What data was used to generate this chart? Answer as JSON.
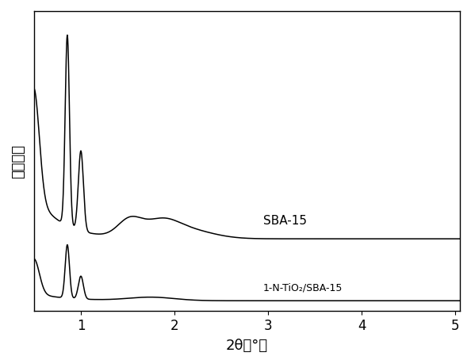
{
  "title": "",
  "xlabel": "2θ（°）",
  "ylabel": "衍射强度",
  "xlim": [
    0.5,
    5.05
  ],
  "ylim": [
    0,
    1.0
  ],
  "bg_color": "#ffffff",
  "label_sba15": "SBA-15",
  "label_ntio2": "1-N-TiO₂/SBA-15",
  "xticks": [
    1,
    2,
    3,
    4,
    5
  ],
  "line_color": "#000000"
}
